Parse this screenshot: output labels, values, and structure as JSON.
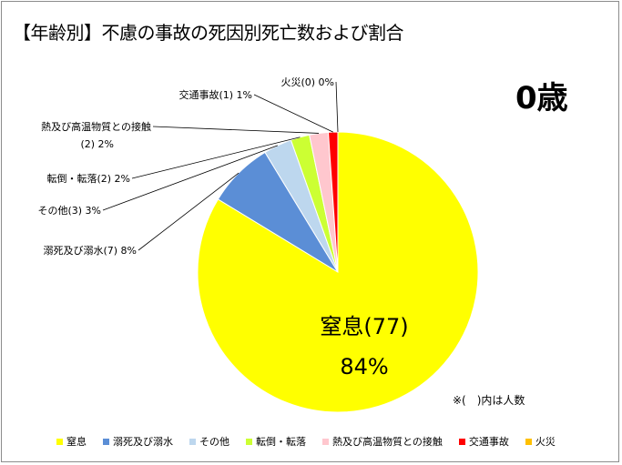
{
  "chart_data": {
    "type": "pie",
    "title": "【年齢別】不慮の事故の死因別死亡数および割合",
    "subtitle": "0歳",
    "note": "※(　)内は人数",
    "start_angle_deg": 0,
    "legend_position": "bottom",
    "slices": [
      {
        "name": "窒息",
        "count": 77,
        "percent": "84%",
        "color": "#FFFF00",
        "label": "窒息(77)",
        "percent_label": "84%",
        "inside": true
      },
      {
        "name": "溺死及び溺水",
        "count": 7,
        "percent": "8%",
        "color": "#5B8ED6",
        "label": "溺死及び溺水(7) 8%"
      },
      {
        "name": "その他",
        "count": 3,
        "percent": "3%",
        "color": "#BDD7EE",
        "label": "その他(3) 3%"
      },
      {
        "name": "転倒・転落",
        "count": 2,
        "percent": "2%",
        "color": "#CCFF33",
        "label": "転倒・転落(2) 2%"
      },
      {
        "name": "熱及び高温物質との接触",
        "count": 2,
        "percent": "2%",
        "color": "#FFC7CE",
        "label_line1": "熱及び高温物質との接触",
        "label_line2": "(2) 2%"
      },
      {
        "name": "交通事故",
        "count": 1,
        "percent": "1%",
        "color": "#FF0000",
        "label": "交通事故(1) 1%"
      },
      {
        "name": "火災",
        "count": 0,
        "percent": "0%",
        "color": "#FFC000",
        "label": "火災(0) 0%"
      }
    ]
  }
}
